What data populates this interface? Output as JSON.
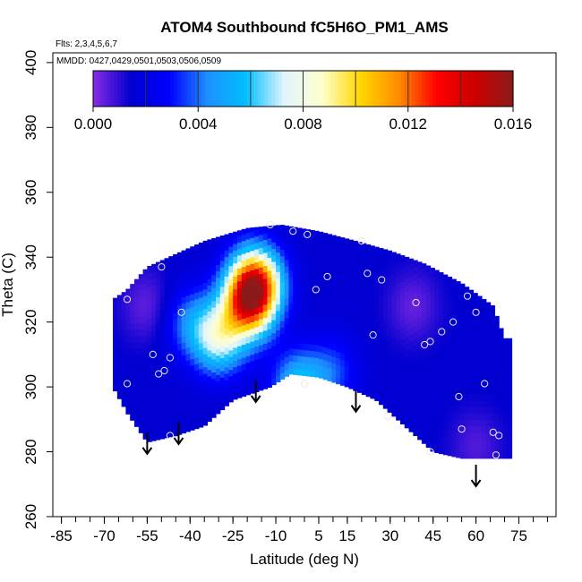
{
  "chart_data": {
    "type": "heatmap",
    "title": "ATOM4 Southbound fC5H6O_PM1_AMS",
    "subtitle_flights": "Flts: 2,3,4,5,6,7",
    "subtitle_dates": "MMDD: 0427,0429,0501,0503,0506,0509",
    "xlabel": "Latitude (deg N)",
    "ylabel": "Theta (C)",
    "xlim": [
      -88,
      88
    ],
    "ylim": [
      260,
      403
    ],
    "x_ticks": [
      -85,
      -70,
      -55,
      -40,
      -25,
      -10,
      5,
      15,
      30,
      45,
      60,
      75
    ],
    "x_tick_labels": [
      "-85",
      "-70",
      "-55",
      "-40",
      "-25",
      "-10",
      "5",
      "15",
      "30",
      "45",
      "60",
      "75"
    ],
    "x_minor_step": 5,
    "y_ticks": [
      260,
      280,
      300,
      320,
      340,
      360,
      380,
      400
    ],
    "y_tick_labels": [
      "260",
      "280",
      "300",
      "320",
      "340",
      "360",
      "380",
      "400"
    ],
    "colorbar": {
      "min": 0.0,
      "max": 0.016,
      "tick_values": [
        0.0,
        0.004,
        0.008,
        0.012,
        0.016
      ],
      "tick_labels": [
        "0.000",
        "0.004",
        "0.008",
        "0.012",
        "0.016"
      ],
      "colors": [
        "#8a2be2",
        "#0000d0",
        "#0000ff",
        "#1e90ff",
        "#00bfff",
        "#e0f4ff",
        "#ffffcc",
        "#ffd700",
        "#ff8c00",
        "#ff0000",
        "#cc0000",
        "#8b1a1a"
      ]
    },
    "field": {
      "background_value": 0.0015,
      "hotspots": [
        {
          "lat": -17,
          "theta": 332,
          "value": 0.012
        },
        {
          "lat": -20,
          "theta": 325,
          "value": 0.009
        },
        {
          "lat": -30,
          "theta": 315,
          "value": 0.007
        },
        {
          "lat": -40,
          "theta": 320,
          "value": 0.004
        },
        {
          "lat": -2,
          "theta": 300,
          "value": 0.006
        },
        {
          "lat": -55,
          "theta": 325,
          "value": 0.0004
        },
        {
          "lat": 38,
          "theta": 325,
          "value": 0.0004
        },
        {
          "lat": 60,
          "theta": 282,
          "value": 0.0006
        },
        {
          "lat": 10,
          "theta": 305,
          "value": 0.0035
        }
      ],
      "coverage_top": [
        [
          -67,
          327
        ],
        [
          -62,
          330
        ],
        [
          -55,
          337
        ],
        [
          -45,
          341
        ],
        [
          -35,
          345
        ],
        [
          -20,
          349
        ],
        [
          -8,
          350
        ],
        [
          5,
          348
        ],
        [
          18,
          345
        ],
        [
          30,
          342
        ],
        [
          42,
          338
        ],
        [
          55,
          332
        ],
        [
          66,
          325
        ],
        [
          70,
          315
        ]
      ],
      "coverage_bottom": [
        [
          -67,
          300
        ],
        [
          -62,
          292
        ],
        [
          -55,
          283
        ],
        [
          -45,
          285
        ],
        [
          -35,
          288
        ],
        [
          -25,
          296
        ],
        [
          -12,
          300
        ],
        [
          -5,
          304
        ],
        [
          5,
          303
        ],
        [
          15,
          300
        ],
        [
          25,
          296
        ],
        [
          35,
          288
        ],
        [
          45,
          280
        ],
        [
          55,
          278
        ],
        [
          72,
          278
        ]
      ]
    },
    "observations": [
      {
        "lat": -62,
        "theta": 327
      },
      {
        "lat": -50,
        "theta": 337
      },
      {
        "lat": -53,
        "theta": 310
      },
      {
        "lat": -51,
        "theta": 304
      },
      {
        "lat": -49,
        "theta": 305
      },
      {
        "lat": -47,
        "theta": 309
      },
      {
        "lat": -43,
        "theta": 323
      },
      {
        "lat": -47,
        "theta": 285
      },
      {
        "lat": -62,
        "theta": 301
      },
      {
        "lat": -12,
        "theta": 350
      },
      {
        "lat": -10,
        "theta": 334
      },
      {
        "lat": -4,
        "theta": 348
      },
      {
        "lat": 0,
        "theta": 301
      },
      {
        "lat": 1,
        "theta": 347
      },
      {
        "lat": 4,
        "theta": 330
      },
      {
        "lat": 8,
        "theta": 334
      },
      {
        "lat": 20,
        "theta": 345
      },
      {
        "lat": 22,
        "theta": 335
      },
      {
        "lat": 24,
        "theta": 316
      },
      {
        "lat": 27,
        "theta": 333
      },
      {
        "lat": 29,
        "theta": 291
      },
      {
        "lat": 39,
        "theta": 326
      },
      {
        "lat": 42,
        "theta": 313
      },
      {
        "lat": 44,
        "theta": 314
      },
      {
        "lat": 48,
        "theta": 317
      },
      {
        "lat": 52,
        "theta": 320
      },
      {
        "lat": 54,
        "theta": 297
      },
      {
        "lat": 55,
        "theta": 287
      },
      {
        "lat": 57,
        "theta": 328
      },
      {
        "lat": 60,
        "theta": 323
      },
      {
        "lat": 63,
        "theta": 301
      },
      {
        "lat": 66,
        "theta": 286
      },
      {
        "lat": 68,
        "theta": 285
      },
      {
        "lat": 44,
        "theta": 280
      },
      {
        "lat": 67,
        "theta": 279
      }
    ],
    "arrows": [
      {
        "lat": -55,
        "theta": 286
      },
      {
        "lat": -44,
        "theta": 289
      },
      {
        "lat": -17,
        "theta": 302
      },
      {
        "lat": 18,
        "theta": 299
      },
      {
        "lat": 60,
        "theta": 276
      }
    ]
  }
}
